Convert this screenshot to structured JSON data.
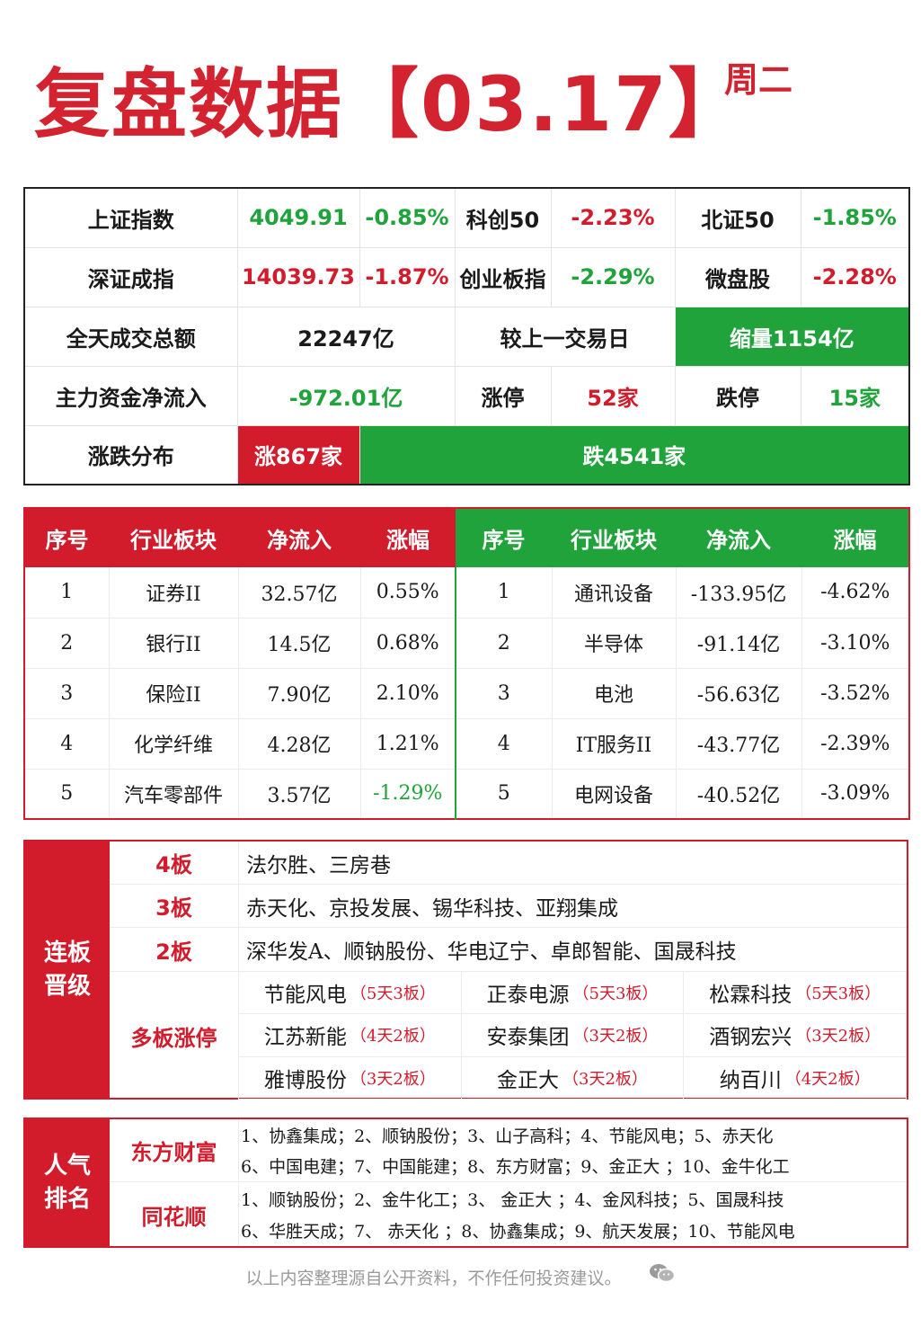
{
  "header": {
    "title": "复盘数据【03.17】",
    "weekday": "周二"
  },
  "summary": {
    "r1": [
      "上证指数",
      "4049.91",
      "-0.85%",
      "科创50",
      "-2.23%",
      "北证50",
      "-1.85%"
    ],
    "r2": [
      "深证成指",
      "14039.73",
      "-1.87%",
      "创业板指",
      "-2.29%",
      "微盘股",
      "-2.28%"
    ],
    "r3": [
      "全天成交总额",
      "22247亿",
      "较上一交易日",
      "缩量1154亿"
    ],
    "r4": [
      "主力资金净流入",
      "-972.01亿",
      "涨停",
      "52家",
      "跌停",
      "15家"
    ],
    "r5": [
      "涨跌分布",
      "涨867家",
      "跌4541家"
    ]
  },
  "sector": {
    "headers": [
      "序号",
      "行业板块",
      "净流入",
      "涨幅",
      "序号",
      "行业板块",
      "净流入",
      "涨幅"
    ],
    "inflow": [
      [
        "1",
        "证券II",
        "32.57亿",
        "0.55%"
      ],
      [
        "2",
        "银行II",
        "14.5亿",
        "0.68%"
      ],
      [
        "3",
        "保险II",
        "7.90亿",
        "2.10%"
      ],
      [
        "4",
        "化学纤维",
        "4.28亿",
        "1.21%"
      ],
      [
        "5",
        "汽车零部件",
        "3.57亿",
        "-1.29%"
      ]
    ],
    "outflow": [
      [
        "1",
        "通讯设备",
        "-133.95亿",
        "-4.62%"
      ],
      [
        "2",
        "半导体",
        "-91.14亿",
        "-3.10%"
      ],
      [
        "3",
        "电池",
        "-56.63亿",
        "-3.52%"
      ],
      [
        "4",
        "IT服务II",
        "-43.77亿",
        "-2.39%"
      ],
      [
        "5",
        "电网设备",
        "-40.52亿",
        "-3.09%"
      ]
    ]
  },
  "limit": {
    "side_1": "连板",
    "side_2": "晋级",
    "rows": [
      {
        "label": "4板",
        "stocks": "法尔胜、三房巷"
      },
      {
        "label": "3板",
        "stocks": "赤天化、京投发展、锡华科技、亚翔集成"
      },
      {
        "label": "2板",
        "stocks": "深华发A、顺钠股份、华电辽宁、卓郎智能、国晟科技"
      }
    ],
    "multi_label": "多板涨停",
    "multi": [
      {
        "name": "节能风电",
        "note": "（5天3板）"
      },
      {
        "name": "正泰电源",
        "note": "（5天3板）"
      },
      {
        "name": "松霖科技",
        "note": "（5天3板）"
      },
      {
        "name": "江苏新能",
        "note": "（4天2板）"
      },
      {
        "name": "安泰集团",
        "note": "（3天2板）"
      },
      {
        "name": "酒钢宏兴",
        "note": "（3天2板）"
      },
      {
        "name": "雅博股份",
        "note": "（3天2板）"
      },
      {
        "name": "金正大",
        "note": "（3天2板）"
      },
      {
        "name": "纳百川",
        "note": "（4天2板）"
      }
    ]
  },
  "popularity": {
    "side_1": "人气",
    "side_2": "排名",
    "eastmoney": {
      "label": "东方财富",
      "line1": "1、协鑫集成；2、顺钠股份；3、山子高科；4、节能风电；5、赤天化",
      "line2": "6、中国电建；7、中国能建；8、东方财富；9、金正大 ；10、金牛化工"
    },
    "ths": {
      "label": "同花顺",
      "line1": "1、顺钠股份；2、金牛化工；3、 金正大 ；4、金风科技；5、国晟科技",
      "line2": "6、华胜天成；7、 赤天化 ；8、协鑫集成；9、航天发展；10、节能风电"
    }
  },
  "footer": {
    "disclaimer": "以上内容整理源自公开资料，不作任何投资建议。"
  },
  "colors": {
    "red": "#d21c2c",
    "green": "#1fa33a"
  }
}
